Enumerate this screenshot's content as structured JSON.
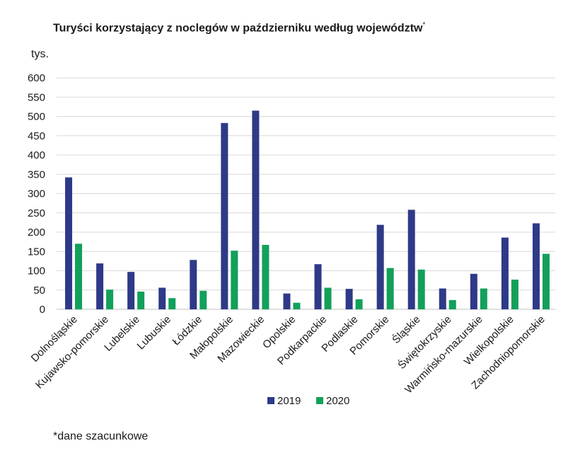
{
  "chart_data": {
    "type": "bar",
    "title": "Turyści korzystający z noclegów w październiku według województw",
    "title_mark": "*",
    "ylabel": "tys.",
    "xlabel": "",
    "ylim": [
      0,
      600
    ],
    "yticks": [
      0,
      50,
      100,
      150,
      200,
      250,
      300,
      350,
      400,
      450,
      500,
      550,
      600
    ],
    "grid": true,
    "legend_position": "bottom-center",
    "categories": [
      "Dolnośląskie",
      "Kujawsko-pomorskie",
      "Lubelskie",
      "Lubuskie",
      "Łódzkie",
      "Małopolskie",
      "Mazowieckie",
      "Opolskie",
      "Podkarpackie",
      "Podlaskie",
      "Pomorskie",
      "Śląskie",
      "Świętokrzyskie",
      "Warmińsko-mazurskie",
      "Wielkopolskie",
      "Zachodniopomorskie"
    ],
    "series": [
      {
        "name": "2019",
        "color": "#2e3a87",
        "values": [
          342,
          119,
          97,
          56,
          128,
          483,
          515,
          41,
          117,
          53,
          219,
          258,
          54,
          92,
          186,
          223
        ]
      },
      {
        "name": "2020",
        "color": "#12a05a",
        "values": [
          170,
          51,
          46,
          29,
          48,
          152,
          167,
          17,
          56,
          26,
          107,
          103,
          24,
          54,
          77,
          144
        ]
      }
    ],
    "footnote": "*dane szacunkowe"
  }
}
